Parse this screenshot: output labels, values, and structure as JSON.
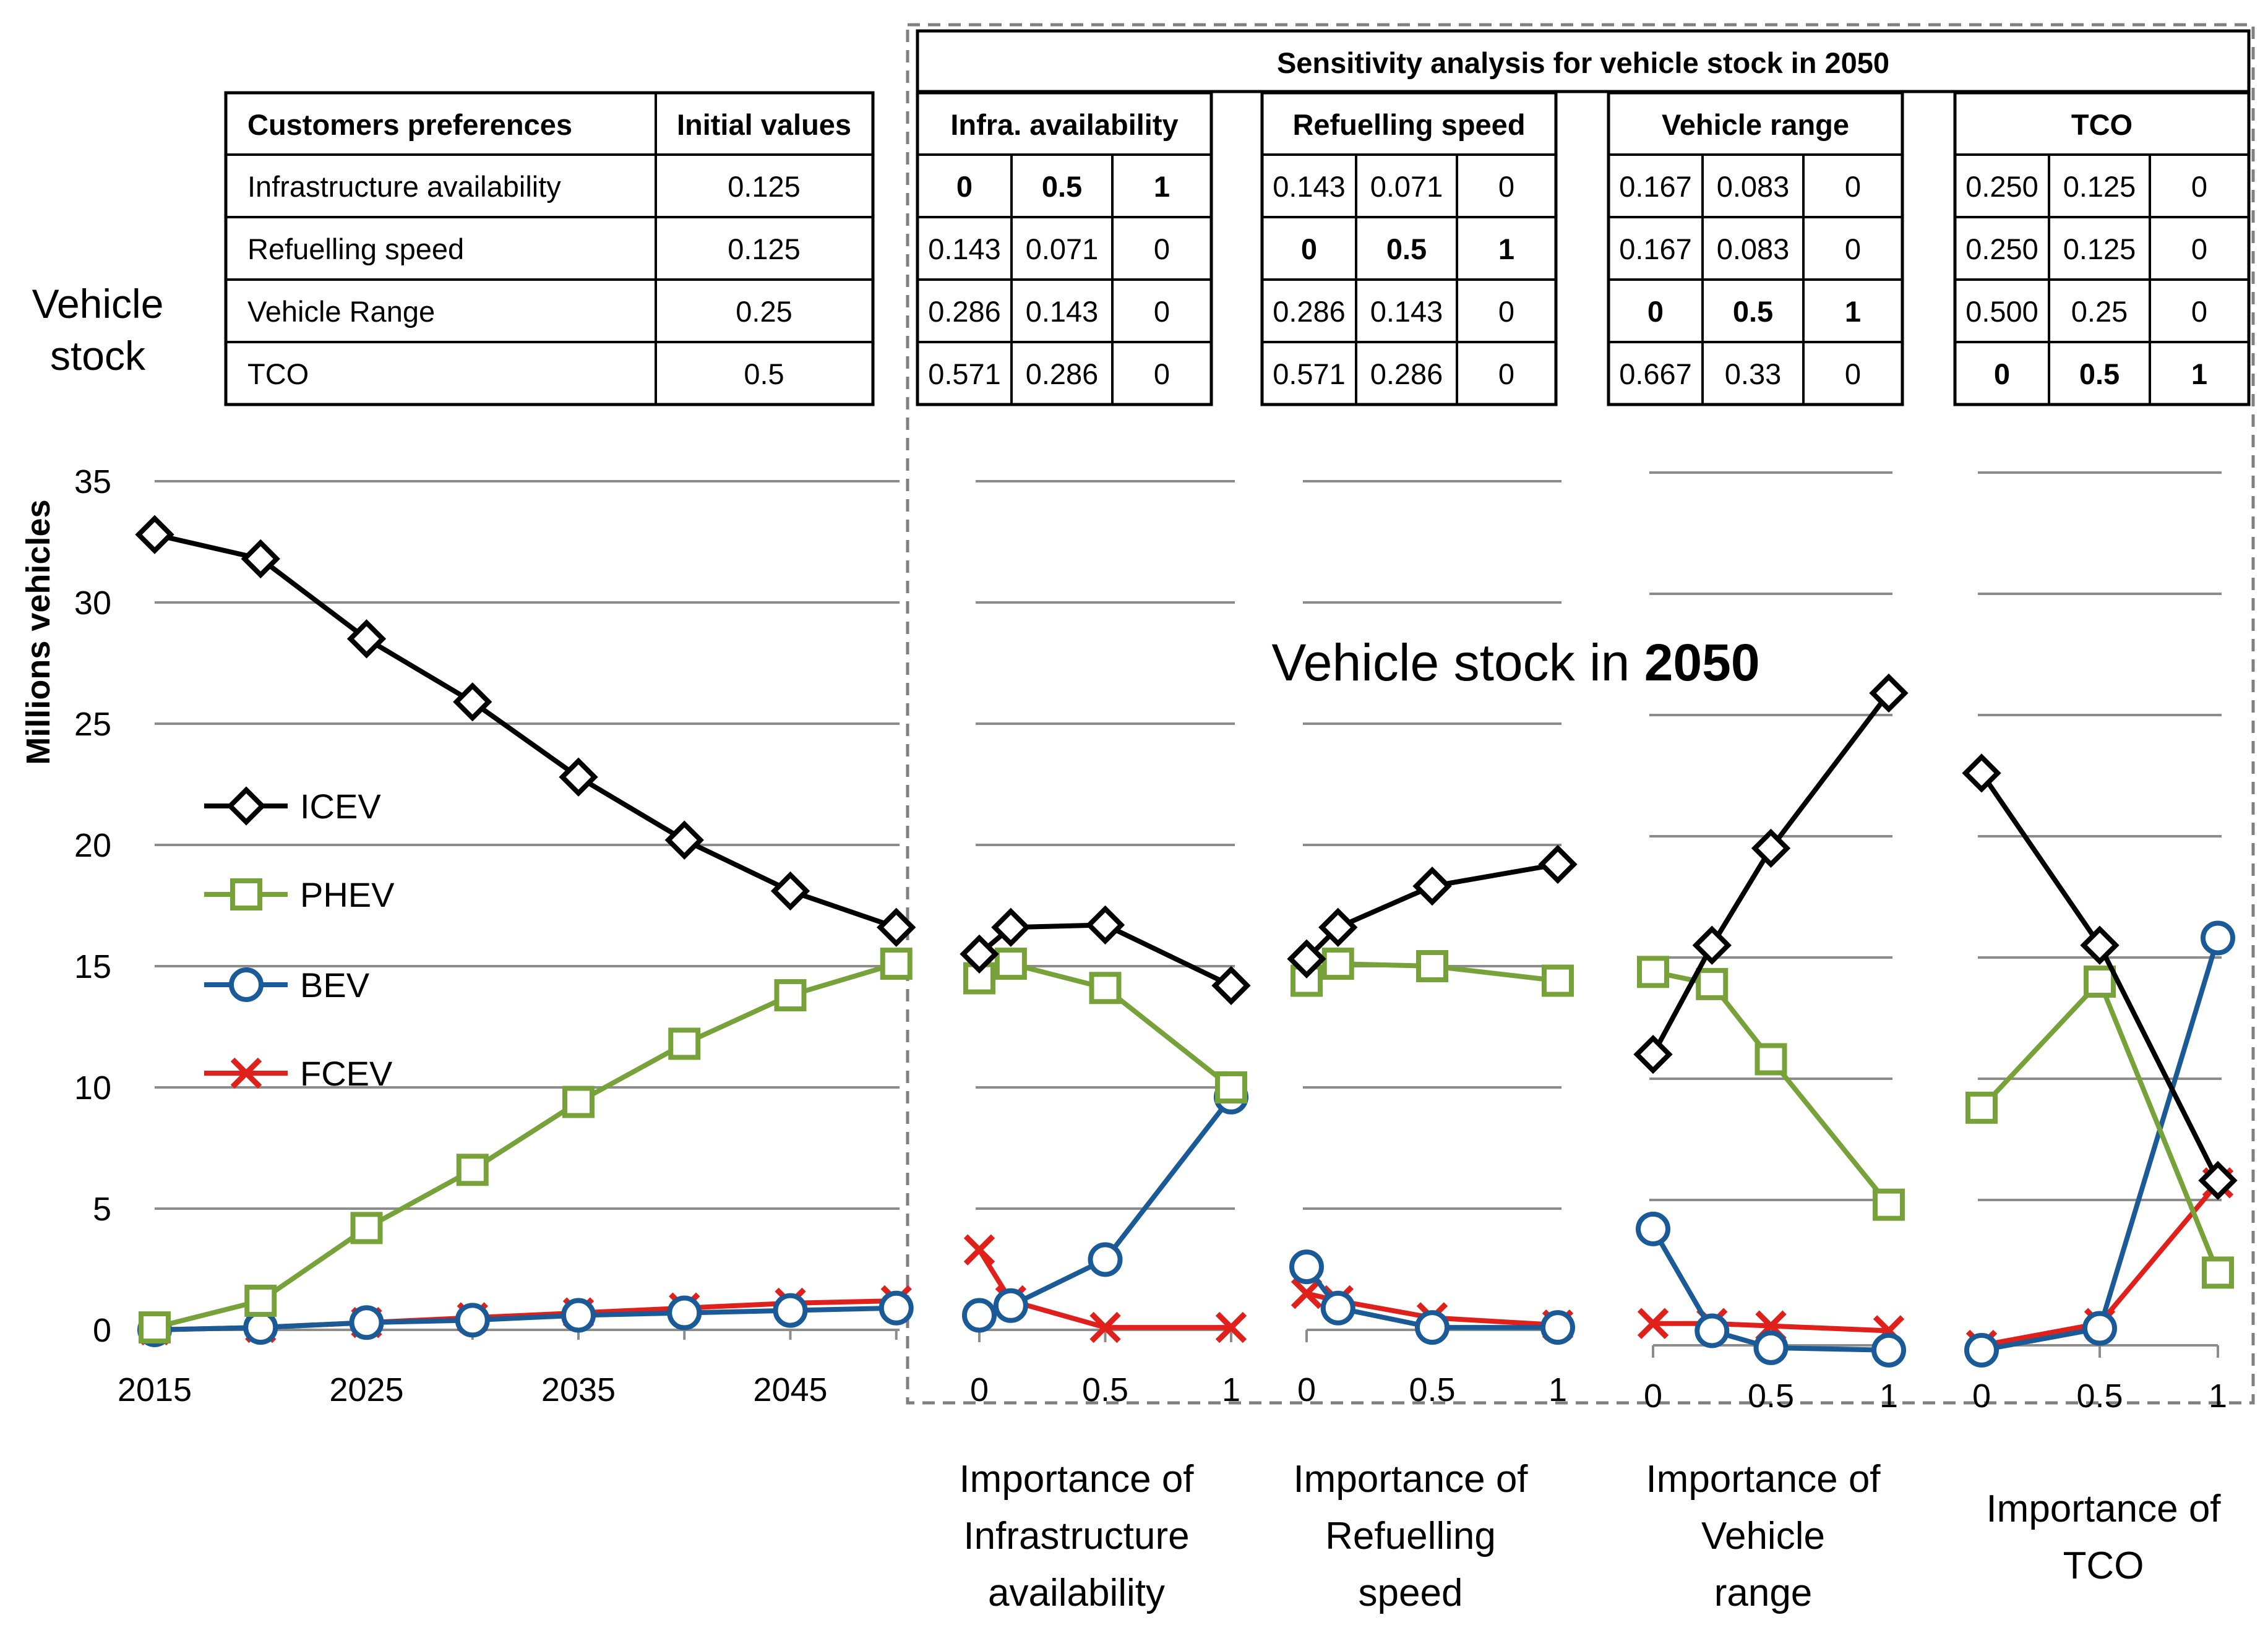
{
  "side_label": [
    "Vehicle",
    "stock"
  ],
  "sensitivity_title": "Sensitivity analysis for vehicle stock in 2050",
  "pref_table": {
    "headers": [
      "Customers preferences",
      "Initial values"
    ],
    "rows": [
      [
        "Infrastructure availability",
        "0.125"
      ],
      [
        "Refuelling speed",
        "0.125"
      ],
      [
        "Vehicle Range",
        "0.25"
      ],
      [
        "TCO",
        "0.5"
      ]
    ]
  },
  "sens_tables": [
    {
      "header": "Infra. availability",
      "rows": [
        [
          "0",
          "0.5",
          "1"
        ],
        [
          "0.143",
          "0.071",
          "0"
        ],
        [
          "0.286",
          "0.143",
          "0"
        ],
        [
          "0.571",
          "0.286",
          "0"
        ]
      ],
      "bold_row": 0
    },
    {
      "header": "Refuelling speed",
      "rows": [
        [
          "0.143",
          "0.071",
          "0"
        ],
        [
          "0",
          "0.5",
          "1"
        ],
        [
          "0.286",
          "0.143",
          "0"
        ],
        [
          "0.571",
          "0.286",
          "0"
        ]
      ],
      "bold_row": 1
    },
    {
      "header": "Vehicle range",
      "rows": [
        [
          "0.167",
          "0.083",
          "0"
        ],
        [
          "0.167",
          "0.083",
          "0"
        ],
        [
          "0",
          "0.5",
          "1"
        ],
        [
          "0.667",
          "0.33",
          "0"
        ]
      ],
      "bold_row": 2
    },
    {
      "header": "TCO",
      "rows": [
        [
          "0.250",
          "0.125",
          "0"
        ],
        [
          "0.250",
          "0.125",
          "0"
        ],
        [
          "0.500",
          "0.25",
          "0"
        ],
        [
          "0",
          "0.5",
          "1"
        ]
      ],
      "bold_row": 3
    }
  ],
  "annotation": {
    "prefix": "Vehicle stock in ",
    "bold": "2050"
  },
  "chart_data": [
    {
      "type": "line",
      "ylabel": "Millions vehicles",
      "ylim": [
        0,
        35
      ],
      "yticks": [
        "0",
        "5",
        "10",
        "15",
        "20",
        "25",
        "30",
        "35"
      ],
      "xtick_labels": [
        "2015",
        "2025",
        "2035",
        "2045"
      ],
      "x": [
        2015,
        2020,
        2025,
        2030,
        2035,
        2040,
        2045,
        2050
      ],
      "series": [
        {
          "name": "ICEV",
          "color": "#000000",
          "marker": "diamond",
          "values": [
            32.8,
            31.8,
            28.5,
            25.9,
            22.8,
            20.2,
            18.1,
            16.6
          ]
        },
        {
          "name": "PHEV",
          "color": "#77a23a",
          "marker": "square",
          "values": [
            0.1,
            1.2,
            4.2,
            6.6,
            9.4,
            11.8,
            13.8,
            15.1
          ]
        },
        {
          "name": "BEV",
          "color": "#1a5a96",
          "marker": "circle",
          "values": [
            0.0,
            0.1,
            0.3,
            0.4,
            0.6,
            0.7,
            0.8,
            0.9
          ]
        },
        {
          "name": "FCEV",
          "color": "#e0201b",
          "marker": "x",
          "values": [
            0.0,
            0.1,
            0.3,
            0.5,
            0.7,
            0.9,
            1.1,
            1.2
          ]
        }
      ]
    },
    {
      "type": "line",
      "xlabel": "Importance of Infrastructure availability",
      "xtick_labels": [
        "0",
        "0.5",
        "1"
      ],
      "x": [
        0,
        0.125,
        0.5,
        1
      ],
      "series": [
        {
          "name": "ICEV",
          "values": [
            15.5,
            16.6,
            16.7,
            14.2
          ]
        },
        {
          "name": "PHEV",
          "values": [
            14.5,
            15.1,
            14.1,
            10.0
          ]
        },
        {
          "name": "BEV",
          "values": [
            0.6,
            1.0,
            2.9,
            9.6
          ]
        },
        {
          "name": "FCEV",
          "values": [
            3.3,
            1.2,
            0.1,
            0.1
          ]
        }
      ]
    },
    {
      "type": "line",
      "xlabel": "Importance of Refuelling speed",
      "xtick_labels": [
        "0",
        "0.5",
        "1"
      ],
      "x": [
        0,
        0.125,
        0.5,
        1
      ],
      "series": [
        {
          "name": "ICEV",
          "values": [
            15.3,
            16.6,
            18.3,
            19.2
          ]
        },
        {
          "name": "PHEV",
          "values": [
            14.4,
            15.1,
            15.0,
            14.4
          ]
        },
        {
          "name": "BEV",
          "values": [
            2.6,
            0.9,
            0.1,
            0.1
          ]
        },
        {
          "name": "FCEV",
          "values": [
            1.5,
            1.2,
            0.5,
            0.2
          ]
        }
      ]
    },
    {
      "type": "line",
      "xlabel": "Importance of Vehicle range",
      "xtick_labels": [
        "0",
        "0.5",
        "1"
      ],
      "x": [
        0,
        0.25,
        0.5,
        1
      ],
      "series": [
        {
          "name": "ICEV",
          "values": [
            12.0,
            16.5,
            20.5,
            26.9
          ]
        },
        {
          "name": "PHEV",
          "values": [
            15.4,
            14.9,
            11.8,
            5.8
          ]
        },
        {
          "name": "BEV",
          "values": [
            4.8,
            0.6,
            -0.1,
            -0.2
          ]
        },
        {
          "name": "FCEV",
          "values": [
            0.9,
            0.9,
            0.8,
            0.6
          ]
        }
      ]
    },
    {
      "type": "line",
      "xlabel": "Importance of TCO",
      "xtick_labels": [
        "0",
        "0.5",
        "1"
      ],
      "x": [
        0,
        0.5,
        1
      ],
      "series": [
        {
          "name": "ICEV",
          "values": [
            23.6,
            16.5,
            6.8
          ]
        },
        {
          "name": "PHEV",
          "values": [
            9.8,
            15.0,
            3.0
          ]
        },
        {
          "name": "BEV",
          "values": [
            -0.2,
            0.7,
            16.8
          ]
        },
        {
          "name": "FCEV",
          "values": [
            0.0,
            0.9,
            6.7
          ]
        }
      ]
    }
  ]
}
